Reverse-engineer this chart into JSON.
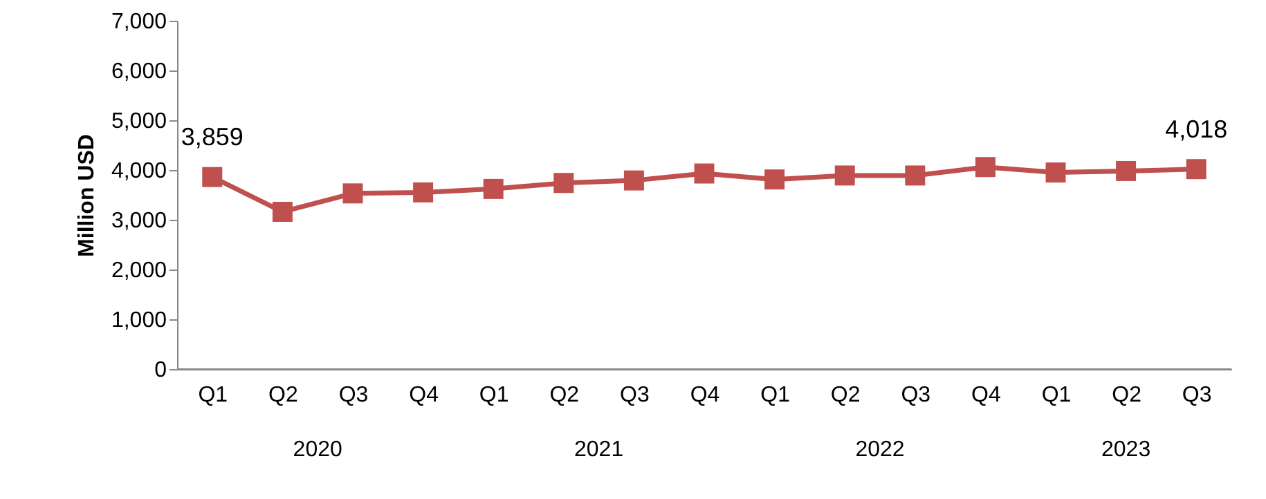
{
  "chart_data": {
    "type": "line",
    "ylabel": "Million USD",
    "categories": [
      "Q1",
      "Q2",
      "Q3",
      "Q4",
      "Q1",
      "Q2",
      "Q3",
      "Q4",
      "Q1",
      "Q2",
      "Q3",
      "Q4",
      "Q1",
      "Q2",
      "Q3"
    ],
    "series": [
      {
        "color": "#c0504d",
        "values": [
          3859,
          3160,
          3530,
          3550,
          3620,
          3740,
          3790,
          3930,
          3810,
          3890,
          3890,
          4060,
          3950,
          3980,
          4018
        ],
        "value_labels": [
          "3,859",
          null,
          null,
          null,
          null,
          null,
          null,
          null,
          null,
          null,
          null,
          null,
          null,
          null,
          "4,018"
        ]
      }
    ],
    "annotations": [
      "2020",
      "2021",
      "2022",
      "2023"
    ],
    "ylim": [
      0,
      7000
    ],
    "yticks": [
      0,
      {
        "value": 1000,
        "label": "1,000"
      },
      {
        "value": 2000,
        "label": "2,000"
      },
      {
        "value": 3000,
        "label": "3,000"
      },
      {
        "value": 4000,
        "label": "4,000"
      },
      {
        "value": 5000,
        "label": "5,000"
      },
      {
        "value": 6000,
        "label": "6,000"
      },
      {
        "value": 7000,
        "label": "7,000"
      }
    ],
    "grid": false,
    "marker": "square",
    "line_style": "solid"
  }
}
